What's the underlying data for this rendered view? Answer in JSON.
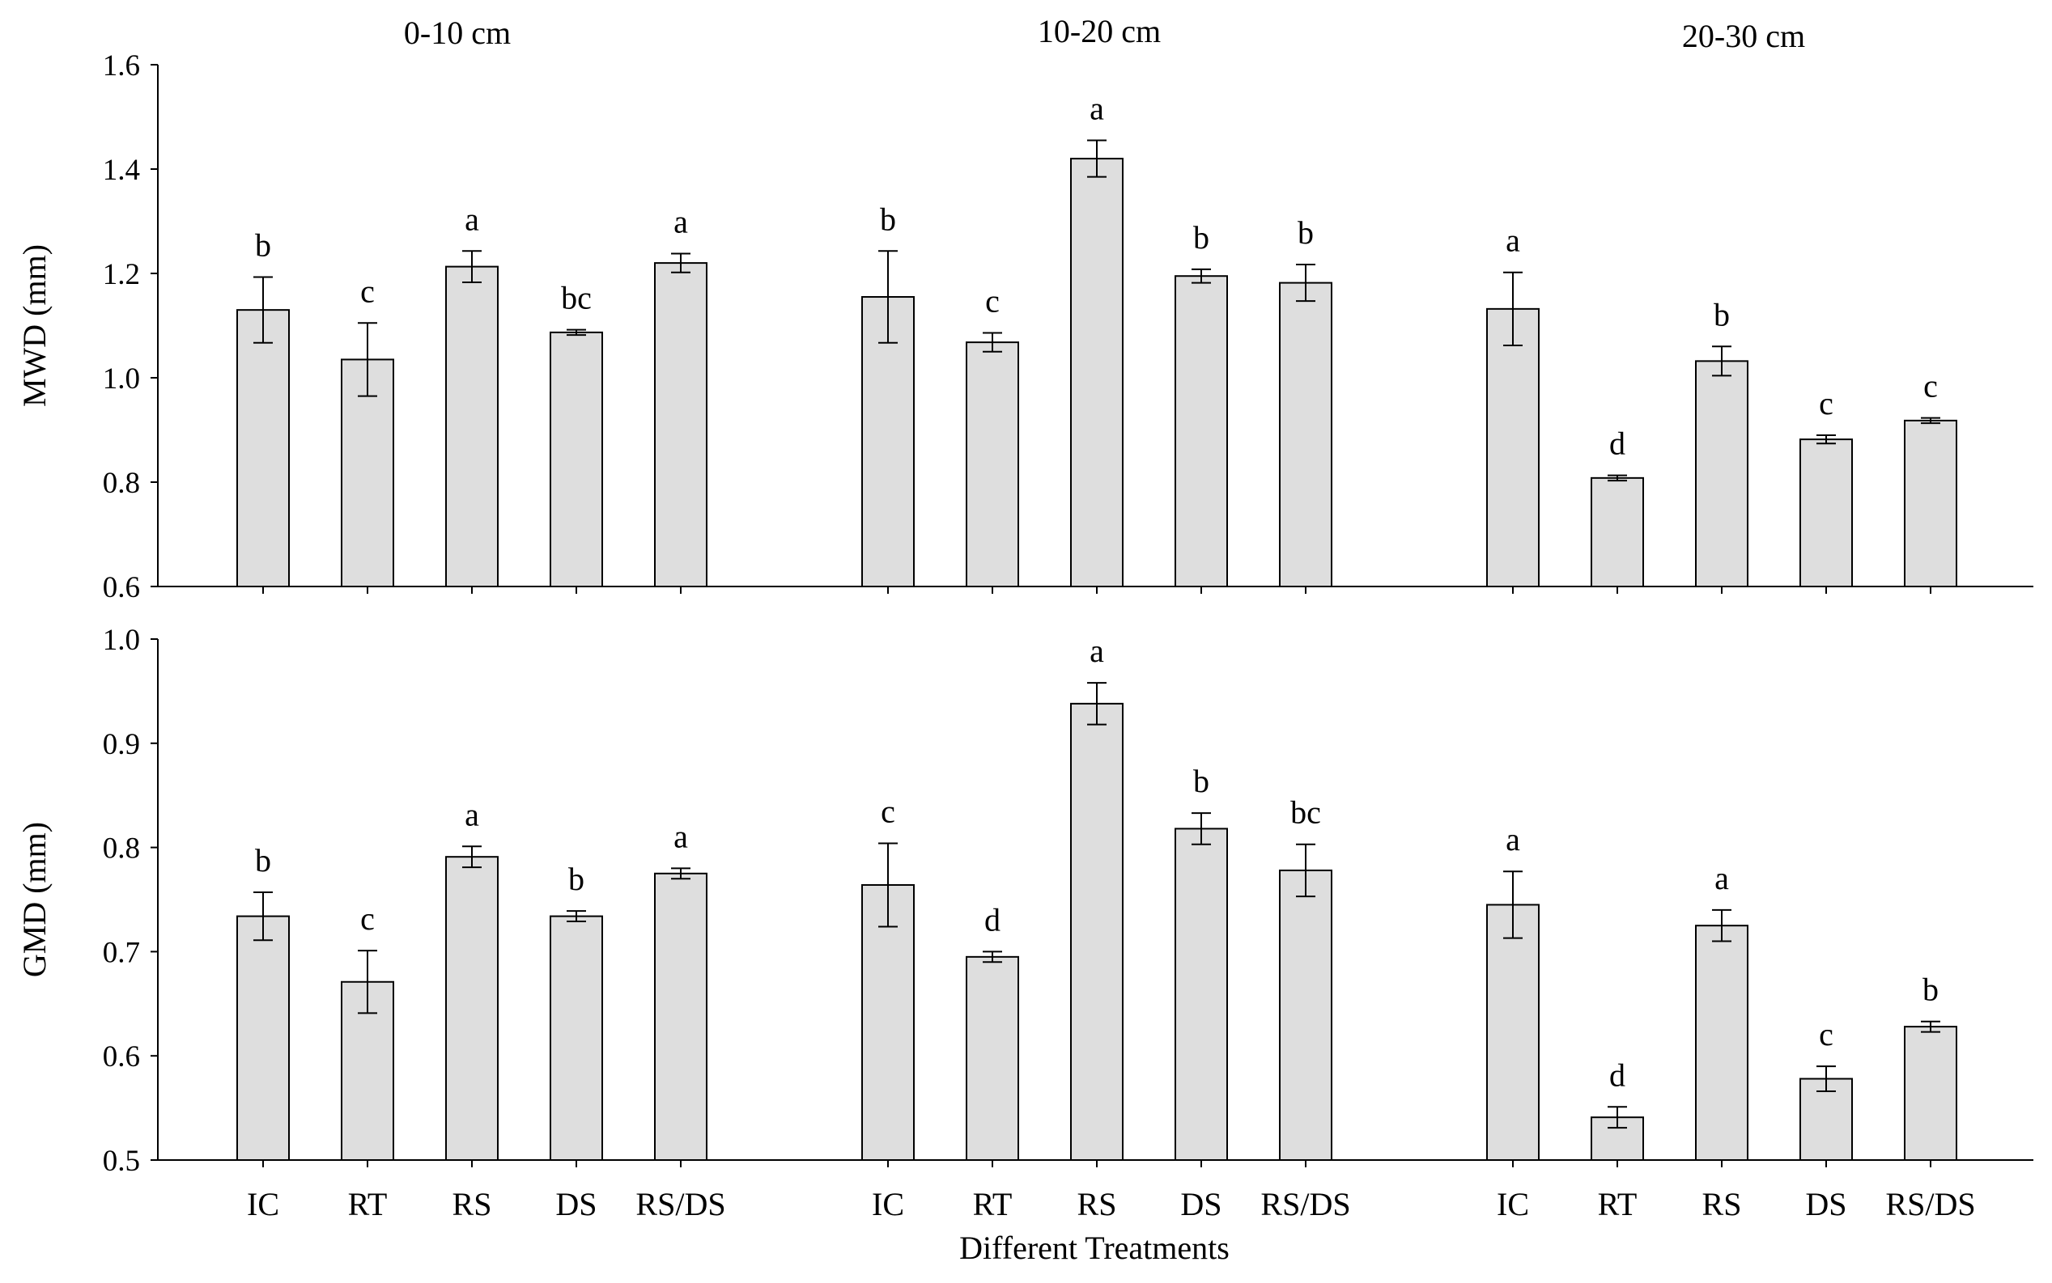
{
  "chart_data": [
    {
      "type": "bar",
      "ylabel": "MWD (mm)",
      "ylim": [
        0.6,
        1.6
      ],
      "yticks": [
        "0.6",
        "0.8",
        "1.0",
        "1.2",
        "1.4",
        "1.6"
      ],
      "group_titles": [
        "0-10 cm",
        "10-20 cm",
        "20-30 cm"
      ],
      "categories": [
        "IC",
        "RT",
        "RS",
        "DS",
        "RS/DS"
      ],
      "groups": [
        {
          "name": "0-10 cm",
          "values": [
            1.13,
            1.035,
            1.213,
            1.087,
            1.22
          ],
          "errors": [
            0.063,
            0.07,
            0.03,
            0.005,
            0.018
          ],
          "letters": [
            "b",
            "c",
            "a",
            "bc",
            "a"
          ]
        },
        {
          "name": "10-20 cm",
          "values": [
            1.155,
            1.068,
            1.42,
            1.195,
            1.182
          ],
          "errors": [
            0.088,
            0.018,
            0.035,
            0.013,
            0.035
          ],
          "letters": [
            "b",
            "c",
            "a",
            "b",
            "b"
          ]
        },
        {
          "name": "20-30 cm",
          "values": [
            1.132,
            0.808,
            1.032,
            0.882,
            0.918
          ],
          "errors": [
            0.07,
            0.005,
            0.028,
            0.008,
            0.005
          ],
          "letters": [
            "a",
            "d",
            "b",
            "c",
            "c"
          ]
        }
      ]
    },
    {
      "type": "bar",
      "ylabel": "GMD (mm)",
      "ylim": [
        0.5,
        1.0
      ],
      "yticks": [
        "0.5",
        "0.6",
        "0.7",
        "0.8",
        "0.9",
        "1.0"
      ],
      "categories": [
        "IC",
        "RT",
        "RS",
        "DS",
        "RS/DS"
      ],
      "groups": [
        {
          "name": "0-10 cm",
          "values": [
            0.734,
            0.671,
            0.791,
            0.734,
            0.775
          ],
          "errors": [
            0.023,
            0.03,
            0.01,
            0.005,
            0.005
          ],
          "letters": [
            "b",
            "c",
            "a",
            "b",
            "a"
          ]
        },
        {
          "name": "10-20 cm",
          "values": [
            0.764,
            0.695,
            0.938,
            0.818,
            0.778
          ],
          "errors": [
            0.04,
            0.005,
            0.02,
            0.015,
            0.025
          ],
          "letters": [
            "c",
            "d",
            "a",
            "b",
            "bc"
          ]
        },
        {
          "name": "20-30 cm",
          "values": [
            0.745,
            0.541,
            0.725,
            0.578,
            0.628
          ],
          "errors": [
            0.032,
            0.01,
            0.015,
            0.012,
            0.005
          ],
          "letters": [
            "a",
            "d",
            "a",
            "c",
            "b"
          ]
        }
      ]
    }
  ],
  "xlabel": "Different Treatments"
}
